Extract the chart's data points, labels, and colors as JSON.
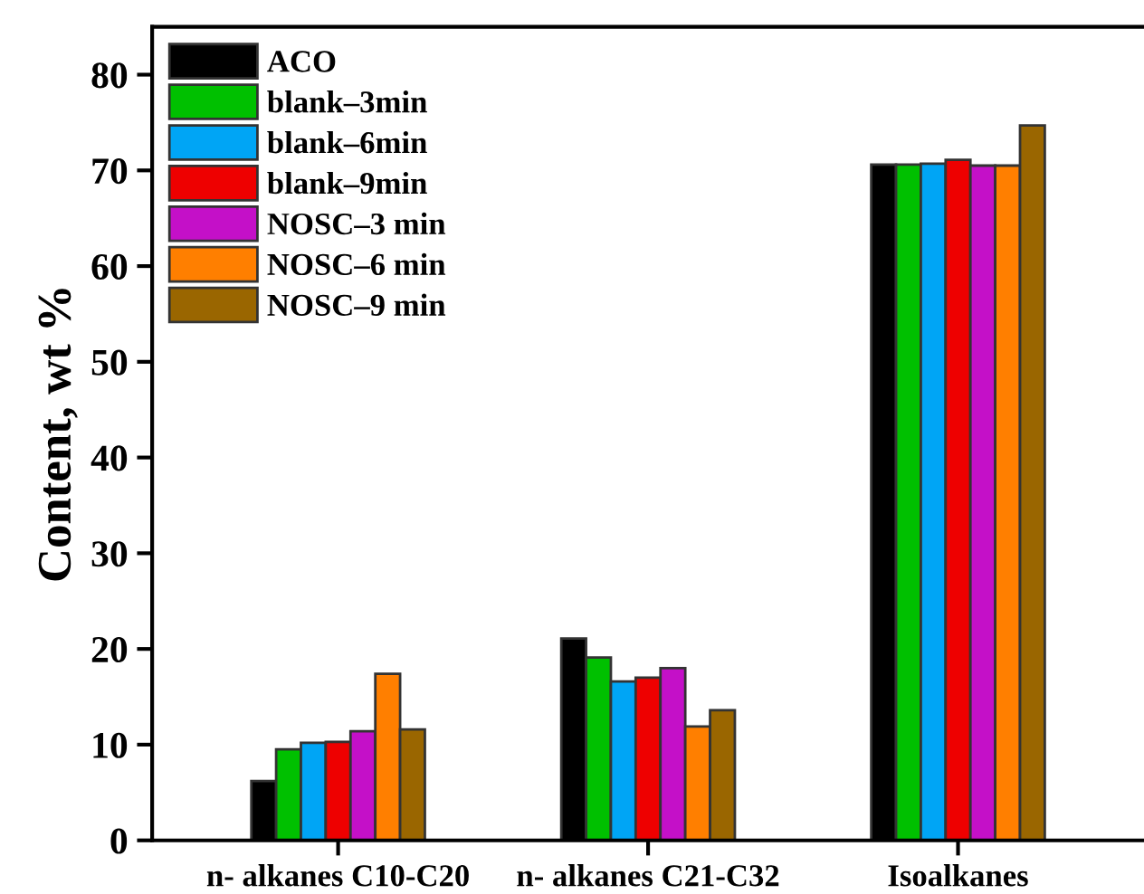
{
  "chart_data": {
    "type": "bar",
    "ylabel": "Content, wt %",
    "categories": [
      "n- alkanes C10-C20",
      "n- alkanes C21-C32",
      "Isoalkanes"
    ],
    "series": [
      {
        "name": "ACO",
        "color": "#000000",
        "values": [
          6.2,
          21.1,
          70.6
        ]
      },
      {
        "name": "blank–3min",
        "color": "#00c000",
        "values": [
          9.5,
          19.1,
          70.6
        ]
      },
      {
        "name": "blank–6min",
        "color": "#00a5f5",
        "values": [
          10.2,
          16.6,
          70.7
        ]
      },
      {
        "name": "blank–9min",
        "color": "#ee0000",
        "values": [
          10.3,
          17.0,
          71.1
        ]
      },
      {
        "name": "NOSC–3 min",
        "color": "#c410c8",
        "values": [
          11.4,
          18.0,
          70.5
        ]
      },
      {
        "name": "NOSC–6 min",
        "color": "#ff7f00",
        "values": [
          17.4,
          11.9,
          70.5
        ]
      },
      {
        "name": "NOSC–9 min",
        "color": "#9a6600",
        "values": [
          11.6,
          13.6,
          74.7
        ]
      }
    ],
    "ylim": [
      0,
      85
    ],
    "yticks": [
      0,
      10,
      20,
      30,
      40,
      50,
      60,
      70,
      80
    ],
    "grid": false,
    "legend": "top left"
  }
}
